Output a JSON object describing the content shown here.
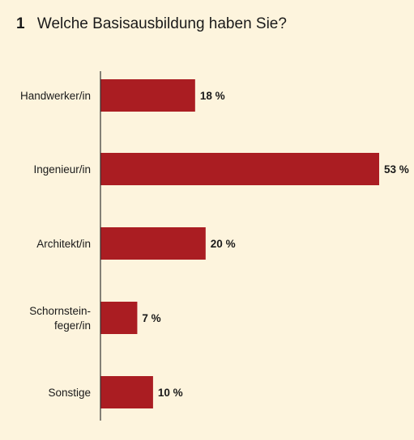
{
  "question": {
    "number": "1",
    "text": "Welche Basisausbildung haben Sie?"
  },
  "chart_data": {
    "type": "bar",
    "orientation": "horizontal",
    "title": "Welche Basisausbildung haben Sie?",
    "categories": [
      [
        "Handwerker/in"
      ],
      [
        "Ingenieur/in"
      ],
      [
        "Architekt/in"
      ],
      [
        "Schornstein-",
        "feger/in"
      ],
      [
        "Sonstige"
      ]
    ],
    "values": [
      18,
      53,
      20,
      7,
      10
    ],
    "value_labels": [
      "18 %",
      "53 %",
      "20 %",
      "7 %",
      "10 %"
    ],
    "unit": "%",
    "xlim": [
      0,
      53
    ],
    "grid": false,
    "colors": {
      "bar": "#aa1d22",
      "axis": "#333333",
      "background": "#fdf4dd"
    }
  }
}
